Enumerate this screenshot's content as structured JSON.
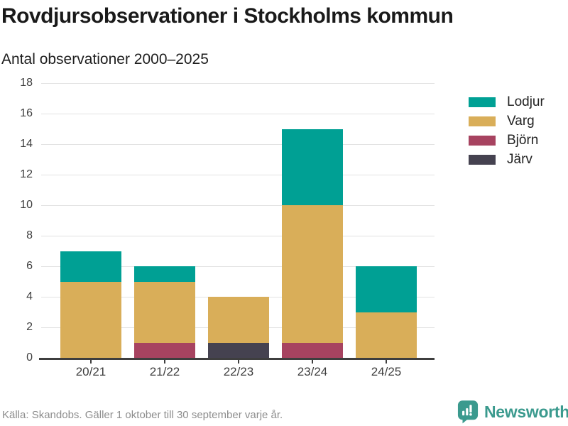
{
  "chart_data": {
    "type": "bar",
    "stacked": true,
    "title": "Rovdjursobservationer i Stockholms kommun",
    "subtitle": "Antal observationer 2000–2025",
    "xlabel": "",
    "ylabel": "",
    "categories": [
      "20/21",
      "21/22",
      "22/23",
      "23/24",
      "24/25"
    ],
    "series": [
      {
        "name": "Lodjur",
        "color": "#00a094",
        "values": [
          2,
          1,
          0,
          5,
          3
        ]
      },
      {
        "name": "Varg",
        "color": "#d9ae59",
        "values": [
          5,
          4,
          3,
          9,
          3
        ]
      },
      {
        "name": "Björn",
        "color": "#a74360",
        "values": [
          0,
          1,
          0,
          1,
          0
        ]
      },
      {
        "name": "Järv",
        "color": "#454250",
        "values": [
          0,
          0,
          1,
          0,
          0
        ]
      }
    ],
    "stack_order_bottom_to_top": [
      "Järv",
      "Björn",
      "Varg",
      "Lodjur"
    ],
    "totals_per_category": [
      7,
      6,
      4,
      15,
      6
    ],
    "ylim": [
      0,
      18
    ],
    "ytick_step": 2,
    "grid": true,
    "legend_position": "right",
    "axis_color": "#3e3e3e",
    "gridline_color": "#e2e2e2"
  },
  "footer": {
    "source": "Källa: Skandobs. Gäller 1 oktober till 30 september varje år.",
    "brand": "Newsworthy",
    "brand_color": "#3b9a8e",
    "brand_logo_icon": "speech-bubble-bar-chart-exclamation-icon"
  }
}
